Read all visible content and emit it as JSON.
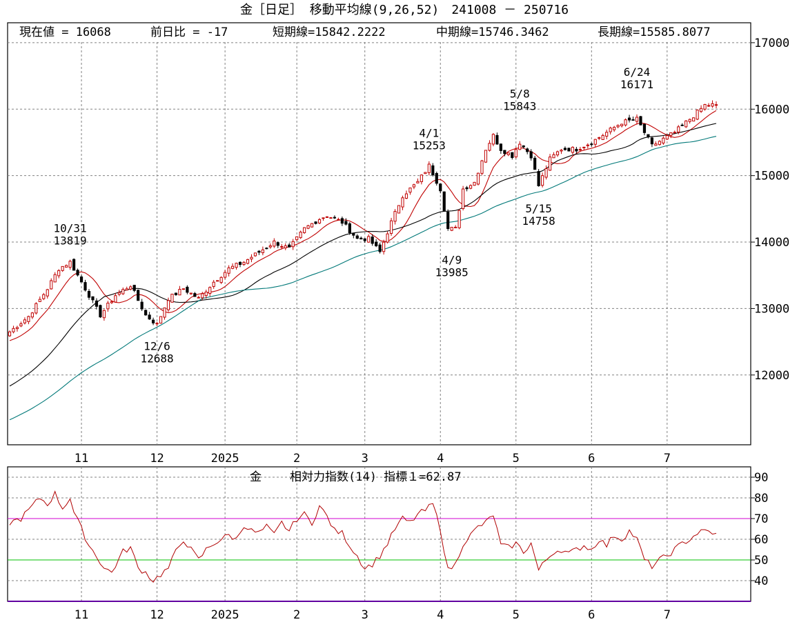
{
  "header": {
    "title": "金［日足］ 移動平均線(9,26,52)　241008 － 250716",
    "current_value": "現在値 = 16068",
    "prev_diff": "前日比 = -17",
    "short_ma": "短期線=15842.2222",
    "mid_ma": "中期線=15746.3462",
    "long_ma": "長期線=15585.8077"
  },
  "colors": {
    "up_candle": "#c00000",
    "down_candle": "#000000",
    "short_ma": "#c00000",
    "mid_ma": "#000000",
    "long_ma": "#007878",
    "rsi_line": "#b00000",
    "rsi_70": "#d000d0",
    "rsi_50": "#00c000",
    "grid": "#808080"
  },
  "chart_data": [
    {
      "type": "candlestick",
      "title": "金［日足］ 移動平均線(9,26,52)　241008 － 250716",
      "y_ticks": [
        12000,
        13000,
        14000,
        15000,
        16000,
        17000
      ],
      "ylim": [
        10950,
        17300
      ],
      "x_tick_labels": [
        "11",
        "12",
        "2025",
        "2",
        "3",
        "4",
        "5",
        "6",
        "7"
      ],
      "x_tick_index": [
        19,
        39,
        57,
        76,
        94,
        114,
        134,
        154,
        174
      ],
      "total_bars": 188,
      "grid": true,
      "annotations": [
        {
          "date": "10/31",
          "value": "13819",
          "index": 16,
          "price": 13819,
          "position": "above"
        },
        {
          "date": "12/6",
          "value": "12688",
          "index": 39,
          "price": 12688,
          "position": "below"
        },
        {
          "date": "4/1",
          "value": "15253",
          "index": 111,
          "price": 15253,
          "position": "above"
        },
        {
          "date": "4/9",
          "value": "13985",
          "index": 117,
          "price": 13985,
          "position": "below"
        },
        {
          "date": "5/8",
          "value": "15843",
          "index": 135,
          "price": 15843,
          "position": "above"
        },
        {
          "date": "5/15",
          "value": "14758",
          "index": 140,
          "price": 14758,
          "position": "below"
        },
        {
          "date": "6/24",
          "value": "16171",
          "index": 166,
          "price": 16171,
          "position": "above"
        }
      ],
      "price_close_anchors": [
        [
          0,
          12650
        ],
        [
          5,
          12880
        ],
        [
          10,
          13300
        ],
        [
          13,
          13600
        ],
        [
          16,
          13700
        ],
        [
          20,
          13300
        ],
        [
          24,
          12900
        ],
        [
          28,
          13200
        ],
        [
          32,
          13350
        ],
        [
          36,
          12900
        ],
        [
          39,
          12760
        ],
        [
          42,
          13150
        ],
        [
          46,
          13300
        ],
        [
          50,
          13150
        ],
        [
          54,
          13400
        ],
        [
          58,
          13600
        ],
        [
          62,
          13700
        ],
        [
          66,
          13850
        ],
        [
          70,
          14000
        ],
        [
          74,
          13900
        ],
        [
          78,
          14200
        ],
        [
          82,
          14350
        ],
        [
          84,
          14400
        ],
        [
          88,
          14300
        ],
        [
          92,
          14050
        ],
        [
          95,
          14050
        ],
        [
          98,
          13850
        ],
        [
          101,
          14300
        ],
        [
          104,
          14700
        ],
        [
          108,
          14900
        ],
        [
          111,
          15150
        ],
        [
          114,
          14800
        ],
        [
          116,
          14200
        ],
        [
          118,
          14200
        ],
        [
          120,
          14800
        ],
        [
          123,
          14900
        ],
        [
          126,
          15400
        ],
        [
          128,
          15600
        ],
        [
          130,
          15400
        ],
        [
          133,
          15300
        ],
        [
          135,
          15500
        ],
        [
          138,
          15300
        ],
        [
          140,
          14850
        ],
        [
          143,
          15250
        ],
        [
          146,
          15400
        ],
        [
          150,
          15400
        ],
        [
          154,
          15500
        ],
        [
          158,
          15650
        ],
        [
          162,
          15800
        ],
        [
          166,
          15850
        ],
        [
          168,
          15650
        ],
        [
          170,
          15450
        ],
        [
          173,
          15550
        ],
        [
          176,
          15650
        ],
        [
          178,
          15750
        ],
        [
          181,
          15900
        ],
        [
          184,
          16060
        ],
        [
          187,
          16068
        ]
      ],
      "series": [
        {
          "name": "短期線",
          "period": 9,
          "last": 15842.2222
        },
        {
          "name": "中期線",
          "period": 26,
          "last": 15746.3462
        },
        {
          "name": "長期線",
          "period": 52,
          "last": 15585.8077
        }
      ]
    },
    {
      "type": "line",
      "title": "金　相対力指数(14) 指標１=62.87",
      "label_left": "金",
      "label_right": "相対力指数(14) 指標１=62.87",
      "y_ticks": [
        40,
        50,
        60,
        70,
        80,
        90
      ],
      "ylim": [
        30,
        95
      ],
      "reference_lines": [
        70,
        50
      ],
      "x_tick_labels": [
        "11",
        "12",
        "2025",
        "2",
        "3",
        "4",
        "5",
        "6",
        "7"
      ],
      "rsi_anchors": [
        [
          0,
          68
        ],
        [
          3,
          70
        ],
        [
          5,
          74
        ],
        [
          8,
          80
        ],
        [
          10,
          77
        ],
        [
          12,
          82
        ],
        [
          14,
          75
        ],
        [
          16,
          80
        ],
        [
          17,
          73
        ],
        [
          19,
          65
        ],
        [
          21,
          57
        ],
        [
          23,
          52
        ],
        [
          25,
          46
        ],
        [
          27,
          44
        ],
        [
          30,
          54
        ],
        [
          32,
          56
        ],
        [
          34,
          46
        ],
        [
          36,
          44
        ],
        [
          38,
          40
        ],
        [
          40,
          43
        ],
        [
          42,
          46
        ],
        [
          44,
          54
        ],
        [
          46,
          60
        ],
        [
          48,
          55
        ],
        [
          50,
          50
        ],
        [
          52,
          55
        ],
        [
          54,
          58
        ],
        [
          56,
          60
        ],
        [
          58,
          62
        ],
        [
          60,
          60
        ],
        [
          62,
          67
        ],
        [
          64,
          64
        ],
        [
          66,
          63
        ],
        [
          68,
          66
        ],
        [
          70,
          62
        ],
        [
          72,
          68
        ],
        [
          74,
          64
        ],
        [
          76,
          70
        ],
        [
          78,
          72
        ],
        [
          80,
          68
        ],
        [
          82,
          76
        ],
        [
          84,
          71
        ],
        [
          86,
          64
        ],
        [
          88,
          63
        ],
        [
          90,
          57
        ],
        [
          92,
          52
        ],
        [
          94,
          46
        ],
        [
          96,
          48
        ],
        [
          98,
          52
        ],
        [
          100,
          58
        ],
        [
          102,
          65
        ],
        [
          104,
          70
        ],
        [
          106,
          68
        ],
        [
          108,
          72
        ],
        [
          110,
          74
        ],
        [
          112,
          77
        ],
        [
          114,
          65
        ],
        [
          116,
          45
        ],
        [
          118,
          48
        ],
        [
          120,
          58
        ],
        [
          122,
          62
        ],
        [
          124,
          66
        ],
        [
          126,
          68
        ],
        [
          128,
          72
        ],
        [
          130,
          57
        ],
        [
          132,
          56
        ],
        [
          134,
          58
        ],
        [
          136,
          54
        ],
        [
          138,
          58
        ],
        [
          140,
          45
        ],
        [
          142,
          50
        ],
        [
          144,
          54
        ],
        [
          146,
          55
        ],
        [
          148,
          53
        ],
        [
          150,
          55
        ],
        [
          152,
          57
        ],
        [
          154,
          55
        ],
        [
          156,
          60
        ],
        [
          158,
          57
        ],
        [
          160,
          62
        ],
        [
          162,
          60
        ],
        [
          164,
          64
        ],
        [
          166,
          60
        ],
        [
          168,
          50
        ],
        [
          170,
          47
        ],
        [
          172,
          50
        ],
        [
          174,
          52
        ],
        [
          176,
          55
        ],
        [
          178,
          58
        ],
        [
          180,
          60
        ],
        [
          182,
          63
        ],
        [
          184,
          64
        ],
        [
          187,
          62.87
        ]
      ]
    }
  ]
}
